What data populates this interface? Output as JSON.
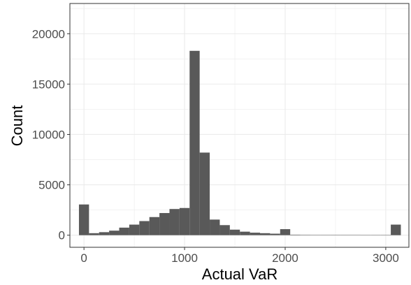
{
  "chart_data": {
    "type": "bar",
    "title": "",
    "xlabel": "Actual VaR",
    "ylabel": "Count",
    "xlim": [
      -140,
      3230
    ],
    "ylim": [
      -1200,
      23000
    ],
    "x_ticks": [
      0,
      1000,
      2000,
      3000
    ],
    "y_ticks": [
      0,
      5000,
      10000,
      15000,
      20000
    ],
    "x_tick_labels": [
      "0",
      "1000",
      "2000",
      "3000"
    ],
    "y_tick_labels": [
      "0",
      "5000",
      "10000",
      "15000",
      "20000"
    ],
    "grid": true,
    "legend": "none",
    "bin_width": 100,
    "bar_color": "#595959",
    "panel_border_color": "#333333",
    "grid_color": "#ebebeb",
    "bin_centers": [
      0,
      100,
      200,
      300,
      400,
      500,
      600,
      700,
      800,
      900,
      1000,
      1100,
      1200,
      1300,
      1400,
      1500,
      1600,
      1700,
      1800,
      1900,
      2000,
      2100,
      2200,
      2300,
      2400,
      2500,
      2600,
      2700,
      2800,
      2900,
      3000,
      3100
    ],
    "values": [
      3050,
      200,
      300,
      450,
      750,
      1050,
      1400,
      1800,
      2200,
      2600,
      2700,
      18300,
      8200,
      1550,
      1000,
      550,
      350,
      250,
      200,
      150,
      600,
      50,
      40,
      30,
      30,
      30,
      30,
      20,
      10,
      10,
      10,
      1050
    ]
  }
}
